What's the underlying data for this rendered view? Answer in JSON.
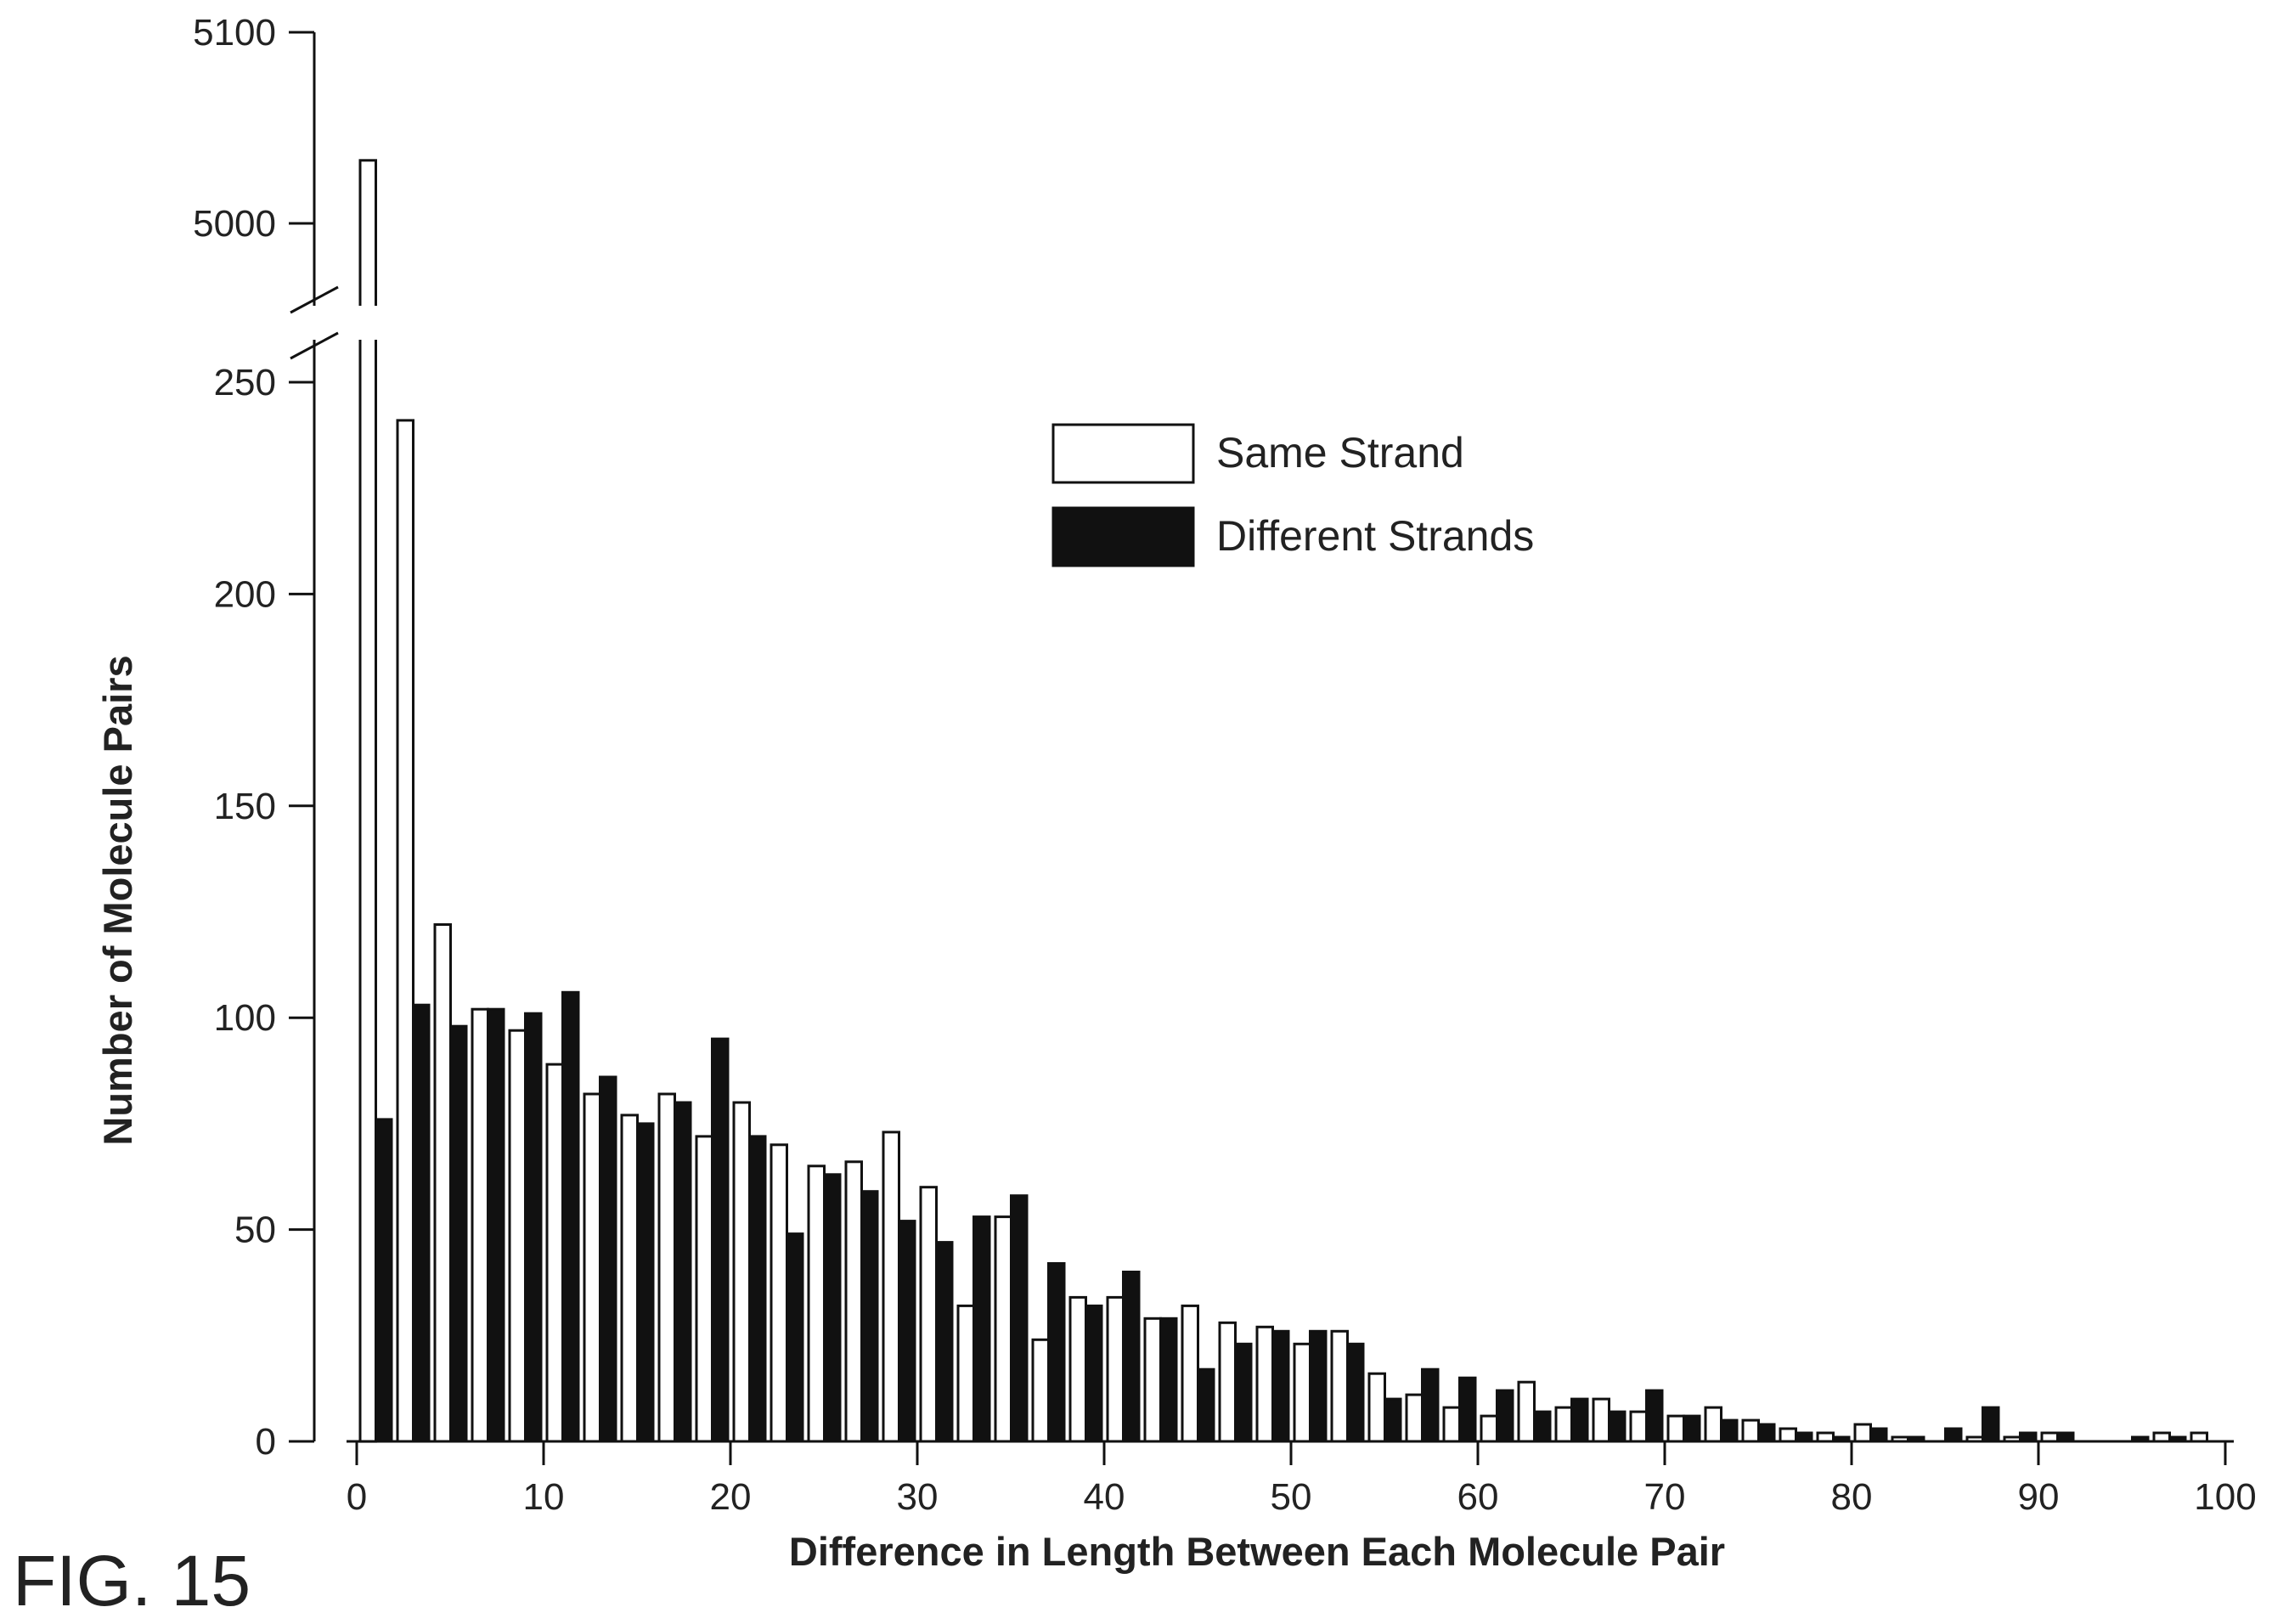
{
  "figure": {
    "label": "FIG. 15"
  },
  "chart_data": {
    "type": "bar",
    "xlabel": "Difference in Length Between Each Molecule Pair",
    "ylabel": "Number of Molecule Pairs",
    "xlim": [
      0,
      100
    ],
    "x_ticks": [
      0,
      10,
      20,
      30,
      40,
      50,
      60,
      70,
      80,
      90,
      100
    ],
    "ylim_lower": [
      0,
      250
    ],
    "y_ticks_lower": [
      0,
      50,
      100,
      150,
      200,
      250
    ],
    "ylim_upper": [
      5000,
      5100
    ],
    "y_ticks_upper": [
      5000,
      5100
    ],
    "axis_break": true,
    "grid": false,
    "legend": "upper-center",
    "x": [
      0,
      2,
      4,
      6,
      8,
      10,
      12,
      14,
      16,
      18,
      20,
      22,
      24,
      26,
      28,
      30,
      32,
      34,
      36,
      38,
      40,
      42,
      44,
      46,
      48,
      50,
      52,
      54,
      56,
      58,
      60,
      62,
      64,
      66,
      68,
      70,
      72,
      74,
      76,
      78,
      80,
      82,
      84,
      86,
      88,
      90,
      92,
      94,
      96,
      98
    ],
    "series": [
      {
        "name": "Same Strand",
        "color": "#ffffff",
        "values": [
          5033,
          241,
          122,
          102,
          97,
          89,
          82,
          77,
          82,
          72,
          80,
          70,
          65,
          66,
          73,
          60,
          32,
          53,
          24,
          34,
          34,
          29,
          32,
          28,
          27,
          23,
          26,
          16,
          11,
          8,
          6,
          14,
          8,
          10,
          7,
          6,
          8,
          5,
          3,
          2,
          4,
          1,
          0,
          1,
          1,
          2,
          0,
          0,
          2,
          2
        ]
      },
      {
        "name": "Different Strands",
        "color": "#111111",
        "values": [
          76,
          103,
          98,
          102,
          101,
          106,
          86,
          75,
          80,
          95,
          72,
          49,
          63,
          59,
          52,
          47,
          53,
          58,
          42,
          32,
          40,
          29,
          17,
          23,
          26,
          26,
          23,
          10,
          17,
          15,
          12,
          7,
          10,
          7,
          12,
          6,
          5,
          4,
          2,
          1,
          3,
          1,
          3,
          8,
          2,
          2,
          0,
          1,
          1,
          0
        ]
      }
    ]
  }
}
